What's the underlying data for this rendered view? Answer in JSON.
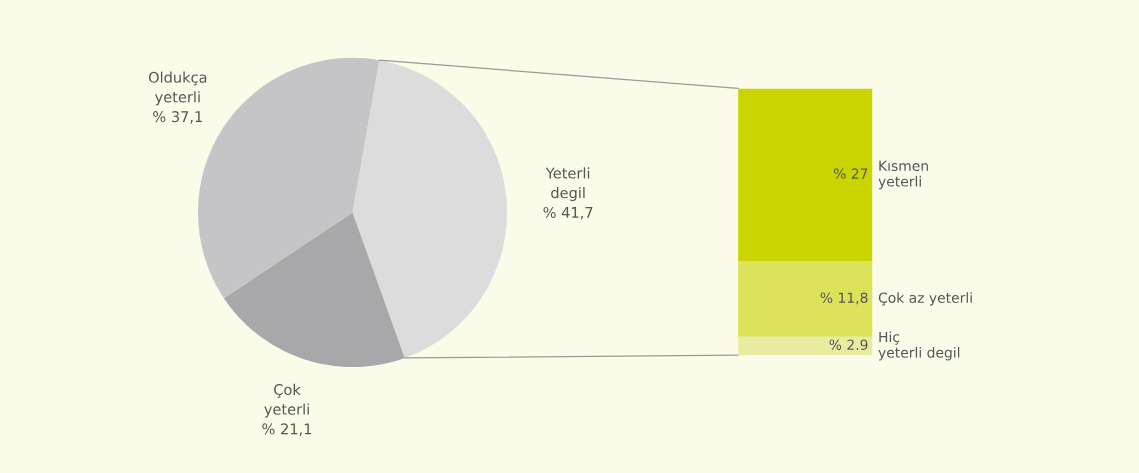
{
  "chart_data": [
    {
      "type": "pie",
      "categories": [
        "Yeterli\ndegil",
        "Çok\nyeterli",
        "Oldukça\nyeterli"
      ],
      "values": [
        41.7,
        21.1,
        37.1
      ],
      "colors": [
        "#dcdcdd",
        "#a8a8aa",
        "#c5c5c7"
      ],
      "value_labels": [
        "% 41,7",
        "% 21,1",
        "% 37,1"
      ]
    },
    {
      "type": "bar",
      "stacked": true,
      "categories": [
        null
      ],
      "series": [
        {
          "name": "Hiç\nyeterli degil",
          "color": "#e7eca0",
          "values": [
            2.9
          ],
          "value_labels": [
            "% 2.9"
          ]
        },
        {
          "name": "Çok az yeterli",
          "color": "#dce25a",
          "values": [
            11.8
          ],
          "value_labels": [
            "% 11,8"
          ]
        },
        {
          "name": "Kısmen\nyeterli",
          "color": "#c9d400",
          "values": [
            27
          ],
          "value_labels": [
            "% 27"
          ]
        }
      ]
    }
  ]
}
